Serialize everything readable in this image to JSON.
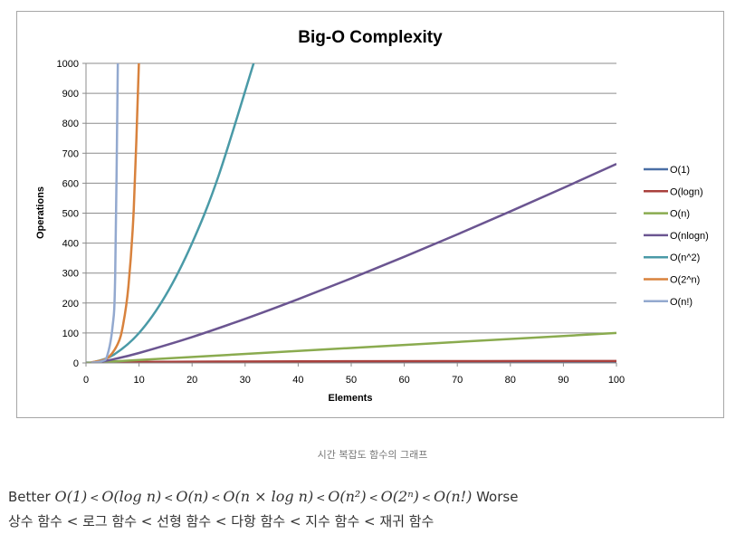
{
  "chart_data": {
    "type": "line",
    "title": "Big-O Complexity",
    "xlabel": "Elements",
    "ylabel": "Operations",
    "xlim": [
      0,
      100
    ],
    "ylim": [
      0,
      1000
    ],
    "x_ticks": [
      0,
      10,
      20,
      30,
      40,
      50,
      60,
      70,
      80,
      90,
      100
    ],
    "y_ticks": [
      0,
      100,
      200,
      300,
      400,
      500,
      600,
      700,
      800,
      900,
      1000
    ],
    "grid": "horizontal",
    "legend_position": "right",
    "series": [
      {
        "name": "O(1)",
        "color": "#4a6fa5",
        "x": [
          0,
          100
        ],
        "y": [
          1,
          1
        ]
      },
      {
        "name": "O(logn)",
        "color": "#a9403d",
        "x": [
          1,
          10,
          25,
          50,
          75,
          100
        ],
        "y": [
          0,
          3.3,
          4.6,
          5.6,
          6.2,
          6.6
        ]
      },
      {
        "name": "O(n)",
        "color": "#8aab4f",
        "x": [
          0,
          100
        ],
        "y": [
          0,
          100
        ]
      },
      {
        "name": "O(nlogn)",
        "color": "#6b5591",
        "x": [
          2,
          5,
          10,
          20,
          30,
          40,
          50,
          60,
          70,
          80,
          90,
          100
        ],
        "y": [
          2,
          11.6,
          33.2,
          86.4,
          147.2,
          212.9,
          282.2,
          354.4,
          429,
          505.8,
          584.3,
          664.4
        ]
      },
      {
        "name": "O(n^2)",
        "color": "#4a9aa7",
        "x": [
          1,
          5,
          10,
          15,
          20,
          25,
          31.6
        ],
        "y": [
          1,
          25,
          100,
          225,
          400,
          625,
          1000
        ]
      },
      {
        "name": "O(2^n)",
        "color": "#d8823d",
        "x": [
          1,
          4,
          6,
          7,
          8,
          9,
          9.97
        ],
        "y": [
          2,
          16,
          64,
          128,
          256,
          512,
          1000
        ]
      },
      {
        "name": "O(n!)",
        "color": "#93a9cf",
        "x": [
          1,
          3,
          4,
          5,
          5.5,
          6
        ],
        "y": [
          1,
          6,
          24,
          120,
          290,
          1000
        ]
      }
    ]
  },
  "caption": "시간 복잡도 함수의 그래프",
  "comparison": {
    "better": "Better",
    "worse": "Worse",
    "separator": "<",
    "terms": [
      "O(1)",
      "O(log n)",
      "O(n)",
      "O(n × log n)",
      "O(n²)",
      "O(2ⁿ)",
      "O(n!)"
    ]
  },
  "korean_line": "상수 함수 < 로그 함수 < 선형 함수 < 다항 함수 < 지수 함수 < 재귀 함수"
}
